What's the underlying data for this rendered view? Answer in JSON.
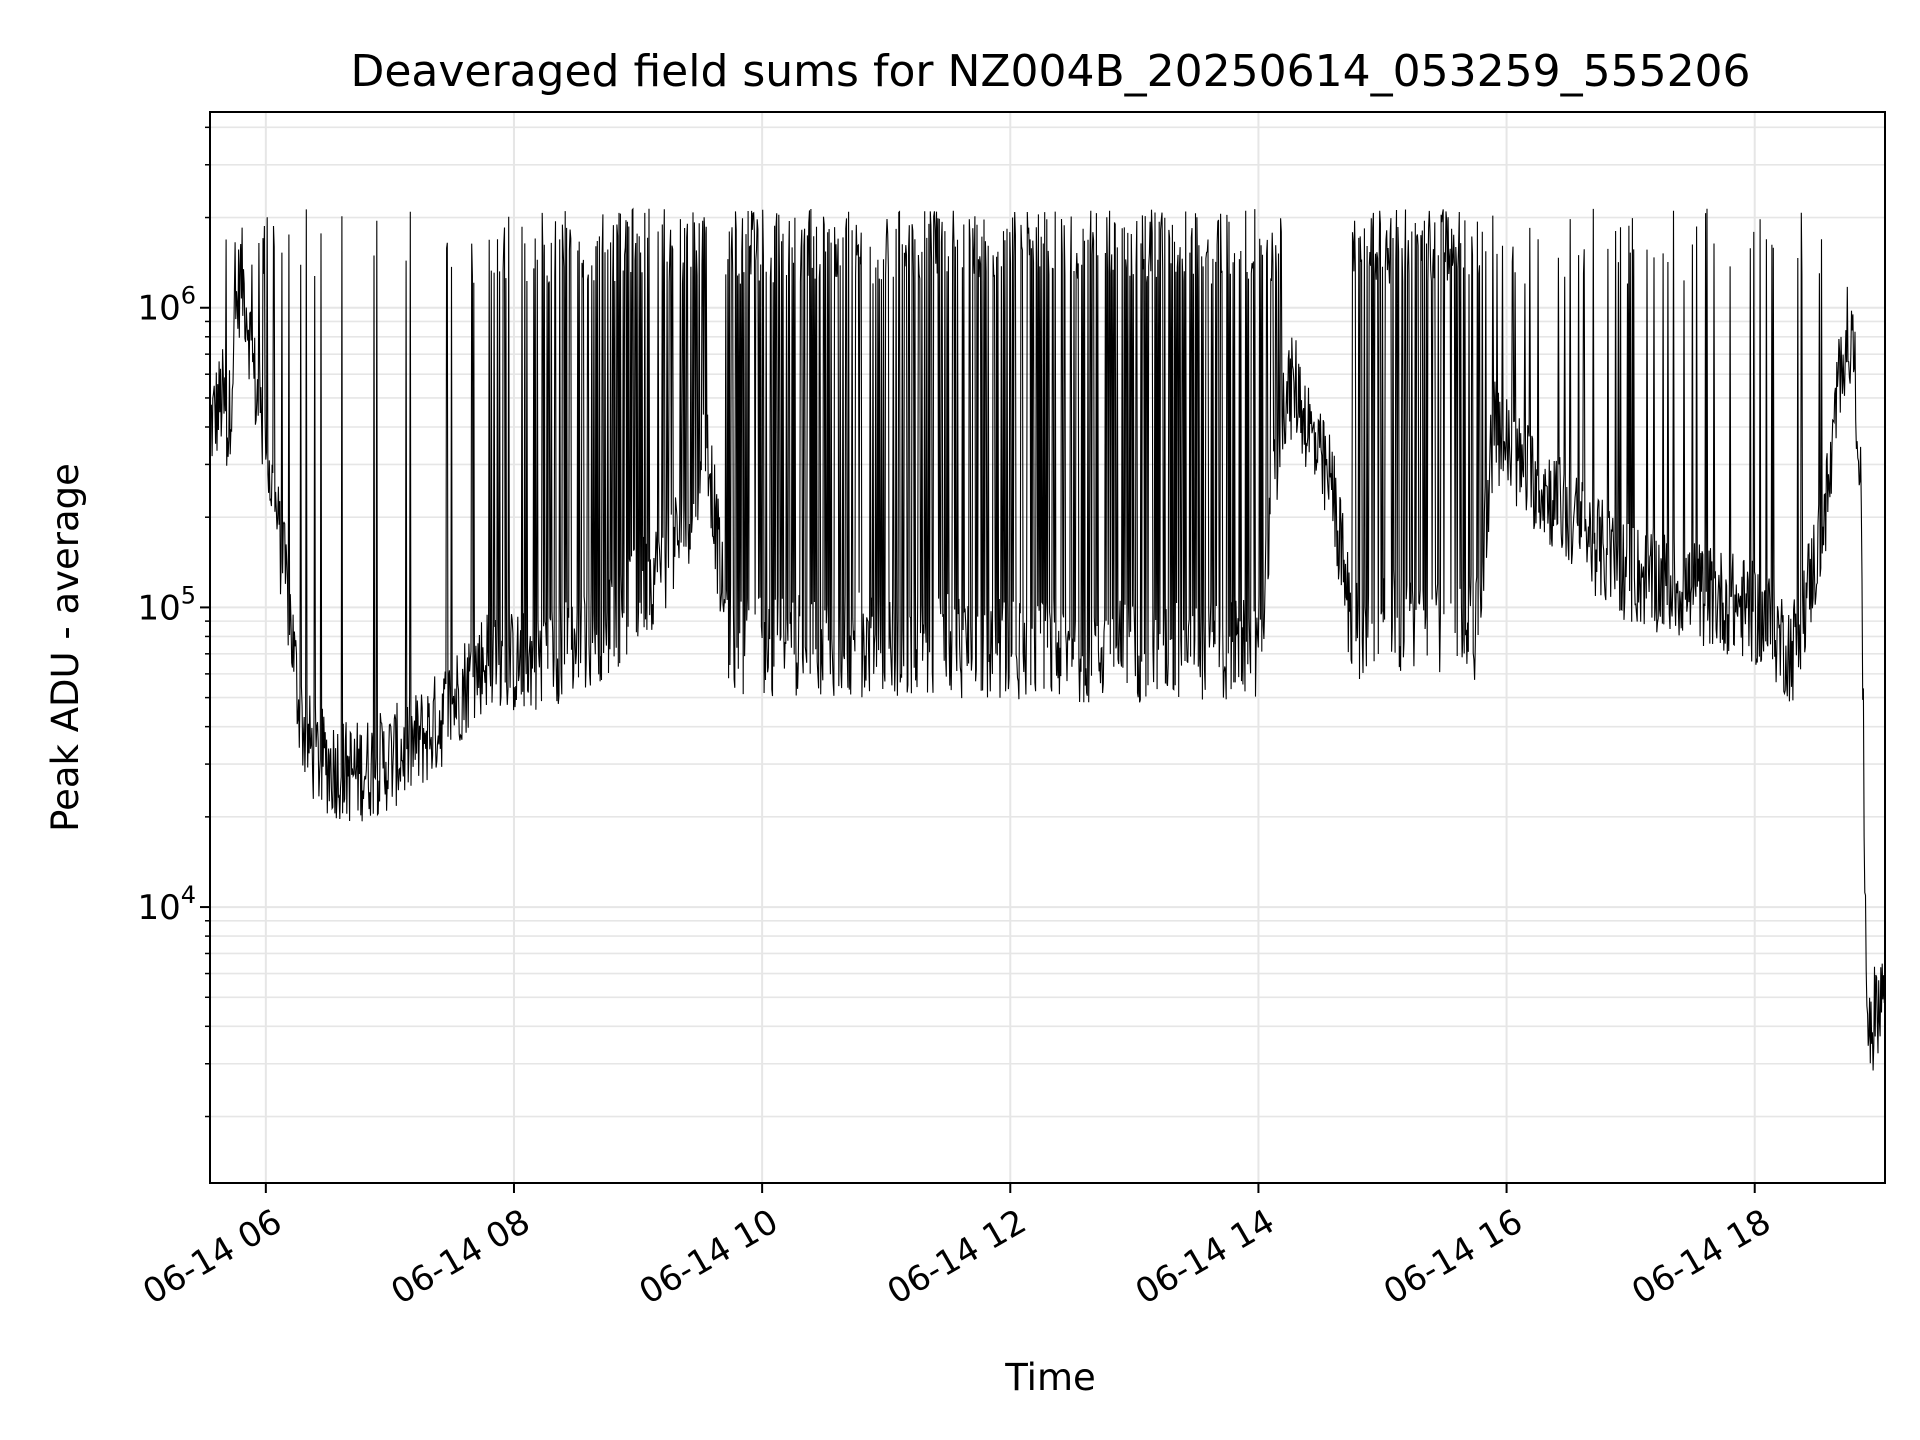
{
  "chart_data": {
    "type": "line",
    "title": "Deaveraged field sums for NZ004B_20250614_053259_555206",
    "xlabel": "Time",
    "ylabel": "Peak ADU - average",
    "yscale": "log",
    "grid": true,
    "x_axis_range_hours": [
      5.55,
      19.05
    ],
    "ylim": [
      1200,
      4500000
    ],
    "x_ticks": [
      {
        "hour": 6,
        "label": "06-14 06"
      },
      {
        "hour": 8,
        "label": "06-14 08"
      },
      {
        "hour": 10,
        "label": "06-14 10"
      },
      {
        "hour": 12,
        "label": "06-14 12"
      },
      {
        "hour": 14,
        "label": "06-14 14"
      },
      {
        "hour": 16,
        "label": "06-14 16"
      },
      {
        "hour": 18,
        "label": "06-14 18"
      }
    ],
    "y_ticks": [
      {
        "value": 10000,
        "base": "10",
        "exp": "4"
      },
      {
        "value": 100000,
        "base": "10",
        "exp": "5"
      },
      {
        "value": 1000000,
        "base": "10",
        "exp": "6"
      }
    ],
    "series": [
      {
        "color": "#000000",
        "x_hours": [
          5.55,
          5.6,
          5.65,
          5.7,
          5.75,
          5.8,
          5.85,
          5.9,
          5.95,
          6.0,
          6.05,
          6.1,
          6.15,
          6.2,
          6.25,
          6.3,
          6.35,
          6.4,
          6.5,
          6.6,
          6.7,
          6.8,
          6.9,
          7.0,
          7.1,
          7.2,
          7.3,
          7.4,
          7.5,
          7.6,
          7.7,
          7.8,
          7.9,
          8.0,
          8.2,
          8.4,
          8.6,
          8.8,
          9.0,
          9.2,
          9.4,
          9.55,
          9.7,
          9.8,
          10.0,
          10.5,
          11.0,
          11.5,
          12.0,
          12.5,
          13.0,
          13.5,
          14.0,
          14.2,
          14.3,
          14.5,
          14.6,
          14.75,
          15.0,
          15.5,
          15.75,
          15.9,
          16.1,
          16.3,
          16.5,
          16.8,
          17.0,
          17.3,
          17.6,
          17.9,
          18.1,
          18.3,
          18.5,
          18.6,
          18.7,
          18.75,
          18.8,
          18.85,
          18.9,
          18.95,
          19.0,
          19.05
        ],
        "y_base": [
          400000,
          450000,
          500000,
          380000,
          900000,
          1300000,
          1000000,
          600000,
          450000,
          350000,
          250000,
          180000,
          130000,
          90000,
          55000,
          40000,
          35000,
          32000,
          30000,
          29000,
          28000,
          29000,
          30000,
          31000,
          33000,
          35000,
          38000,
          42000,
          48000,
          55000,
          62000,
          70000,
          68000,
          65000,
          68000,
          72000,
          80000,
          90000,
          110000,
          140000,
          200000,
          400000,
          90000,
          75000,
          75000,
          75000,
          75000,
          75000,
          72000,
          72000,
          72000,
          72000,
          72000,
          500000,
          550000,
          300000,
          250000,
          85000,
          90000,
          90000,
          85000,
          400000,
          300000,
          250000,
          200000,
          150000,
          130000,
          120000,
          110000,
          100000,
          90000,
          70000,
          150000,
          250000,
          700000,
          800000,
          700000,
          300000,
          5000,
          4000,
          5000,
          5500
        ],
        "spike_top": 1800000,
        "spike_probability_by_region": [
          {
            "from": 5.55,
            "to": 6.2,
            "p": 0.15
          },
          {
            "from": 6.2,
            "to": 7.8,
            "p": 0.05
          },
          {
            "from": 7.8,
            "to": 9.55,
            "p": 0.35
          },
          {
            "from": 9.7,
            "to": 14.2,
            "p": 0.45
          },
          {
            "from": 14.75,
            "to": 15.8,
            "p": 0.55
          },
          {
            "from": 15.8,
            "to": 18.6,
            "p": 0.08
          }
        ]
      }
    ]
  }
}
